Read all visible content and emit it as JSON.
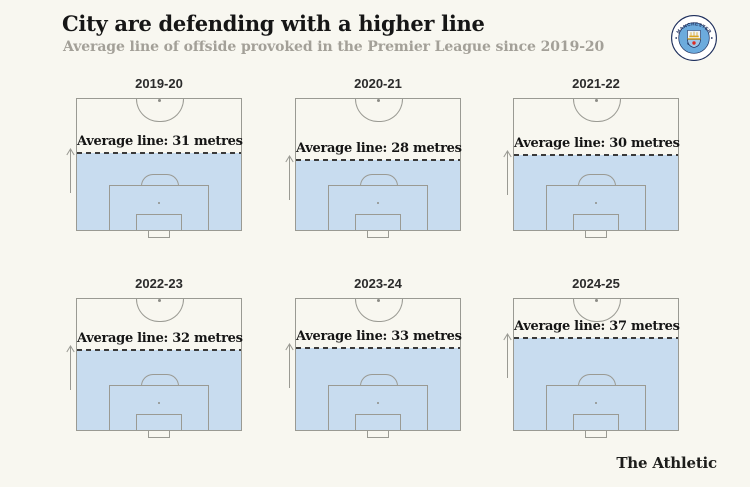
{
  "header": {
    "title": "City are defending with a higher line",
    "subtitle": "Average line of offside provoked in the Premier League since 2019-20"
  },
  "badge": {
    "club": "Manchester City",
    "top_text": "MANCHESTER",
    "bottom_text": "CITY"
  },
  "footer": {
    "brand": "The Athletic"
  },
  "colors": {
    "background": "#f8f7f0",
    "offside_fill_blue": "#c8dcef",
    "pitch_line_gray": "#9a9a93",
    "dashed_line": "#3a3a3a",
    "title_text": "#161616",
    "subtitle_text": "#a3a098",
    "city_sky_blue": "#6cabdd",
    "city_navy": "#1d2e5c",
    "city_gold": "#d9a41f",
    "city_red": "#dc2a23"
  },
  "chart_data": {
    "type": "area",
    "subtype": "football-pitch-small-multiples",
    "title": "City are defending with a higher line",
    "subtitle": "Average line of offside provoked in the Premier League since 2019-20",
    "unit": "metres",
    "pitch_half_length_m": 52.5,
    "categories": [
      "2019-20",
      "2020-21",
      "2021-22",
      "2022-23",
      "2023-24",
      "2024-25"
    ],
    "values": [
      31,
      28,
      30,
      32,
      33,
      37
    ],
    "value_labels": [
      "Average line: 31 metres",
      "Average line: 28 metres",
      "Average line: 30 metres",
      "Average line: 32 metres",
      "Average line: 33 metres",
      "Average line: 37 metres"
    ],
    "layout": {
      "rows": 2,
      "cols": 3,
      "legend": "none",
      "grid": "off"
    },
    "source": "The Athletic"
  },
  "pitches": [
    {
      "season": "2019-20",
      "metres": 31,
      "label": "Average line: 31 metres"
    },
    {
      "season": "2020-21",
      "metres": 28,
      "label": "Average line: 28 metres"
    },
    {
      "season": "2021-22",
      "metres": 30,
      "label": "Average line: 30 metres"
    },
    {
      "season": "2022-23",
      "metres": 32,
      "label": "Average line: 32 metres"
    },
    {
      "season": "2023-24",
      "metres": 33,
      "label": "Average line: 33 metres"
    },
    {
      "season": "2024-25",
      "metres": 37,
      "label": "Average line: 37 metres"
    }
  ]
}
